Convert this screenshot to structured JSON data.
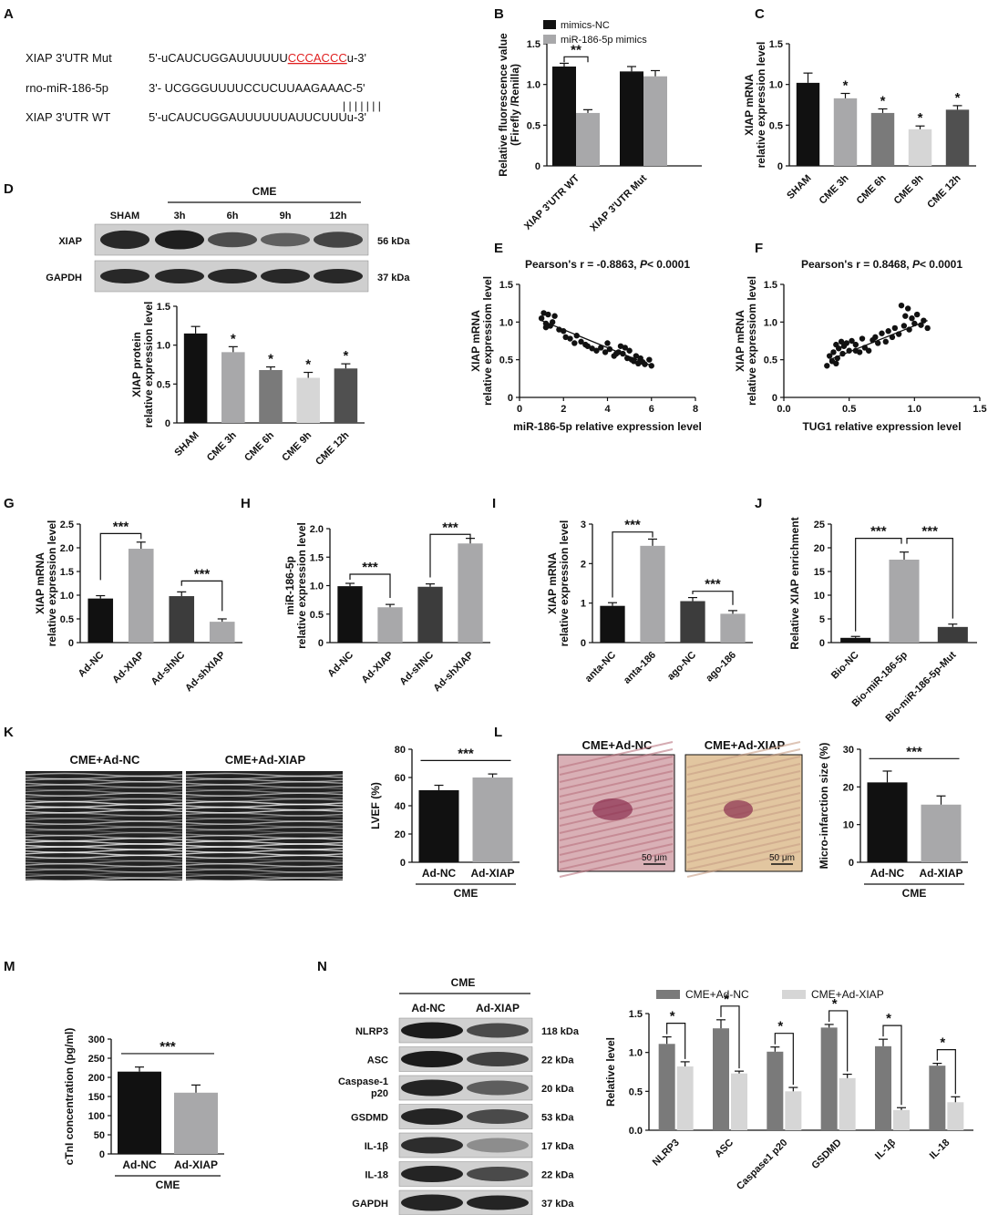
{
  "colors": {
    "black": "#111111",
    "lgray": "#a8a8aa",
    "vlgray": "#d6d6d6",
    "mgray": "#7a7a7a",
    "dgray": "#505050",
    "dkgray": "#3c3c3c"
  },
  "panels": [
    "A",
    "B",
    "C",
    "D",
    "E",
    "F",
    "G",
    "H",
    "I",
    "J",
    "K",
    "L",
    "M",
    "N"
  ],
  "panel_a": {
    "rows": [
      {
        "label": "XIAP 3'UTR Mut",
        "prefix": "5'-uCAUCUGGAUUUUUU",
        "highlight": "CCCACCC",
        "suffix": "u-3'"
      },
      {
        "label": "rno-miR-186-5p",
        "prefix": "3'- UCGGGUUUUCCUCUUAAGAAAC-5'",
        "highlight": "",
        "suffix": ""
      },
      {
        "label": "",
        "prefix": "| | | | | | |",
        "highlight": "",
        "suffix": ""
      },
      {
        "label": "XIAP 3'UTR WT",
        "prefix": "5'-uCAUCUGGAUUUUUUAUUCUUUu-3'",
        "highlight": "",
        "suffix": ""
      }
    ]
  },
  "wb_d": {
    "group": "CME",
    "lanes": [
      "SHAM",
      "3h",
      "6h",
      "9h",
      "12h"
    ],
    "rows": [
      {
        "name": "XIAP",
        "kda": "56 kDa"
      },
      {
        "name": "GAPDH",
        "kda": "37 kDa"
      }
    ]
  },
  "wb_n": {
    "group": "CME",
    "lanes": [
      "Ad-NC",
      "Ad-XIAP"
    ],
    "rows": [
      {
        "name": "NLRP3",
        "kda": "118 kDa"
      },
      {
        "name": "ASC",
        "kda": "22 kDa"
      },
      {
        "name": "Caspase-1 p20",
        "kda": "20 kDa"
      },
      {
        "name": "GSDMD",
        "kda": "53 kDa"
      },
      {
        "name": "IL-1β",
        "kda": "17 kDa"
      },
      {
        "name": "IL-18",
        "kda": "22 kDa"
      },
      {
        "name": "GAPDH",
        "kda": "37 kDa"
      }
    ]
  },
  "k_images": [
    "CME+Ad-NC",
    "CME+Ad-XIAP"
  ],
  "l_images": {
    "titles": [
      "CME+Ad-NC",
      "CME+Ad-XIAP"
    ],
    "scale": "50 μm"
  },
  "chart_data": [
    {
      "id": "B",
      "type": "bar",
      "ylabel": "Relative fluorescence value (Firefly /Renilla)",
      "ylim": [
        0,
        1.5
      ],
      "yticks": [
        0,
        0.5,
        1.0,
        1.5
      ],
      "categories": [
        "XIAP 3'UTR WT",
        "XIAP 3'UTR Mut"
      ],
      "series": [
        {
          "name": "mimics-NC",
          "color": "#111111",
          "values": [
            1.22,
            1.16
          ],
          "err": [
            0.04,
            0.06
          ]
        },
        {
          "name": "miR-186-5p mimics",
          "color": "#a8a8aa",
          "values": [
            0.65,
            1.1
          ],
          "err": [
            0.04,
            0.07
          ]
        }
      ],
      "legend": "top",
      "annotations": [
        {
          "text": "**",
          "between": [
            0,
            0,
            0,
            1
          ]
        }
      ]
    },
    {
      "id": "C",
      "type": "bar",
      "ylabel": "XIAP mRNA relative expression level",
      "ylim": [
        0,
        1.5
      ],
      "yticks": [
        0,
        0.5,
        1.0,
        1.5
      ],
      "categories": [
        "SHAM",
        "CME 3h",
        "CME 6h",
        "CME 9h",
        "CME 12h"
      ],
      "values": [
        1.02,
        0.83,
        0.65,
        0.45,
        0.69
      ],
      "err": [
        0.12,
        0.06,
        0.05,
        0.04,
        0.05
      ],
      "colors": [
        "#111111",
        "#a8a8aa",
        "#7a7a7a",
        "#d6d6d6",
        "#505050"
      ],
      "stars": [
        "",
        "*",
        "*",
        "*",
        "*"
      ]
    },
    {
      "id": "D",
      "type": "bar",
      "ylabel": "XIAP protein relative expression level",
      "ylim": [
        0,
        1.5
      ],
      "yticks": [
        0,
        0.5,
        1.0,
        1.5
      ],
      "categories": [
        "SHAM",
        "CME 3h",
        "CME 6h",
        "CME 9h",
        "CME 12h"
      ],
      "values": [
        1.15,
        0.91,
        0.68,
        0.58,
        0.7
      ],
      "err": [
        0.09,
        0.07,
        0.04,
        0.07,
        0.06
      ],
      "colors": [
        "#111111",
        "#a8a8aa",
        "#7a7a7a",
        "#d6d6d6",
        "#505050"
      ],
      "stars": [
        "",
        "*",
        "*",
        "*",
        "*"
      ]
    },
    {
      "id": "E",
      "type": "scatter",
      "title": "Pearson's r = -0.8863, P< 0.0001",
      "ylabel": "XIAP mRNA relative expressiom level",
      "xlabel": "miR-186-5p relative expression level",
      "xlim": [
        0,
        8
      ],
      "xticks": [
        0,
        2,
        4,
        6,
        8
      ],
      "ylim": [
        0,
        1.5
      ],
      "yticks": [
        0,
        0.5,
        1.0,
        1.5
      ],
      "fit": [
        [
          1.0,
          1.02
        ],
        [
          6.0,
          0.42
        ]
      ],
      "x": [
        1.0,
        1.1,
        1.2,
        1.3,
        1.4,
        1.5,
        1.6,
        1.2,
        1.8,
        2.0,
        2.1,
        2.3,
        2.5,
        2.6,
        2.8,
        3.0,
        3.1,
        3.3,
        3.5,
        3.7,
        3.9,
        4.0,
        4.1,
        4.3,
        4.5,
        4.6,
        4.7,
        4.9,
        5.0,
        5.1,
        5.2,
        5.3,
        5.4,
        5.5,
        5.6,
        5.7,
        5.9,
        6.0,
        4.4,
        4.8
      ],
      "y": [
        1.05,
        1.12,
        0.98,
        1.1,
        0.95,
        1.0,
        1.08,
        0.93,
        0.9,
        0.88,
        0.8,
        0.78,
        0.72,
        0.82,
        0.74,
        0.7,
        0.68,
        0.65,
        0.62,
        0.66,
        0.6,
        0.72,
        0.64,
        0.55,
        0.6,
        0.68,
        0.58,
        0.52,
        0.62,
        0.5,
        0.48,
        0.55,
        0.45,
        0.52,
        0.47,
        0.44,
        0.5,
        0.42,
        0.58,
        0.66
      ]
    },
    {
      "id": "F",
      "type": "scatter",
      "title": "Pearson's r = 0.8468, P< 0.0001",
      "ylabel": "XIAP mRNA relative expressiom level",
      "xlabel": "TUG1 relative expression level",
      "xlim": [
        0,
        1.5
      ],
      "xticks": [
        0,
        0.5,
        1.0,
        1.5
      ],
      "ylim": [
        0,
        1.5
      ],
      "yticks": [
        0,
        0.5,
        1.0,
        1.5
      ],
      "fit": [
        [
          0.35,
          0.5
        ],
        [
          1.1,
          1.02
        ]
      ],
      "x": [
        0.33,
        0.35,
        0.37,
        0.38,
        0.4,
        0.41,
        0.42,
        0.44,
        0.45,
        0.46,
        0.48,
        0.5,
        0.52,
        0.55,
        0.58,
        0.6,
        0.62,
        0.65,
        0.7,
        0.72,
        0.75,
        0.78,
        0.8,
        0.83,
        0.85,
        0.88,
        0.9,
        0.92,
        0.95,
        0.96,
        0.98,
        1.0,
        1.02,
        1.05,
        1.07,
        1.1,
        0.93,
        0.4,
        0.55,
        0.68
      ],
      "y": [
        0.42,
        0.55,
        0.48,
        0.6,
        0.7,
        0.52,
        0.65,
        0.74,
        0.58,
        0.68,
        0.72,
        0.62,
        0.75,
        0.7,
        0.6,
        0.78,
        0.66,
        0.62,
        0.8,
        0.72,
        0.85,
        0.74,
        0.88,
        0.8,
        0.92,
        0.84,
        1.22,
        0.95,
        1.18,
        0.9,
        1.05,
        0.98,
        1.1,
        0.96,
        1.02,
        0.92,
        1.08,
        0.45,
        0.62,
        0.76
      ]
    },
    {
      "id": "G",
      "type": "bar",
      "ylabel": "XIAP mRNA relative expression level",
      "ylim": [
        0,
        2.5
      ],
      "yticks": [
        0,
        0.5,
        1.0,
        1.5,
        2.0,
        2.5
      ],
      "categories": [
        "Ad-NC",
        "Ad-XIAP",
        "Ad-shNC",
        "Ad-shXIAP"
      ],
      "values": [
        0.93,
        1.98,
        0.98,
        0.44
      ],
      "err": [
        0.06,
        0.14,
        0.09,
        0.06
      ],
      "colors": [
        "#111111",
        "#a8a8aa",
        "#3c3c3c",
        "#a8a8aa"
      ],
      "annotations": [
        {
          "text": "***",
          "between": [
            0,
            1
          ]
        },
        {
          "text": "***",
          "between": [
            2,
            3
          ]
        }
      ]
    },
    {
      "id": "H",
      "type": "bar",
      "ylabel": "miR-186-5p relative expression level",
      "ylim": [
        0,
        2.0
      ],
      "yticks": [
        0,
        0.5,
        1.0,
        1.5,
        2.0
      ],
      "categories": [
        "Ad-NC",
        "Ad-XIAP",
        "Ad-shNC",
        "Ad-shXIAP"
      ],
      "values": [
        0.99,
        0.62,
        0.98,
        1.74
      ],
      "err": [
        0.05,
        0.05,
        0.05,
        0.09
      ],
      "colors": [
        "#111111",
        "#a8a8aa",
        "#3c3c3c",
        "#a8a8aa"
      ],
      "annotations": [
        {
          "text": "***",
          "between": [
            0,
            1
          ]
        },
        {
          "text": "***",
          "between": [
            2,
            3
          ]
        }
      ]
    },
    {
      "id": "I",
      "type": "bar",
      "ylabel": "XIAP mRNA relative expression level",
      "ylim": [
        0,
        3
      ],
      "yticks": [
        0,
        1,
        2,
        3
      ],
      "categories": [
        "anta-NC",
        "anta-186",
        "ago-NC",
        "ago-186"
      ],
      "values": [
        0.93,
        2.45,
        1.05,
        0.73
      ],
      "err": [
        0.08,
        0.17,
        0.09,
        0.08
      ],
      "colors": [
        "#111111",
        "#a8a8aa",
        "#3c3c3c",
        "#a8a8aa"
      ],
      "annotations": [
        {
          "text": "***",
          "between": [
            0,
            1
          ]
        },
        {
          "text": "***",
          "between": [
            2,
            3
          ]
        }
      ]
    },
    {
      "id": "J",
      "type": "bar",
      "ylabel": "Relative XIAP enrichment",
      "ylim": [
        0,
        25
      ],
      "yticks": [
        0,
        5,
        10,
        15,
        20,
        25
      ],
      "categories": [
        "Bio-NC",
        "Bio-miR-186-5p",
        "Bio-miR-186-5p-Mut"
      ],
      "values": [
        1.0,
        17.5,
        3.3
      ],
      "err": [
        0.3,
        1.6,
        0.6
      ],
      "colors": [
        "#111111",
        "#a8a8aa",
        "#3c3c3c"
      ],
      "annotations": [
        {
          "text": "***",
          "between": [
            0,
            1
          ]
        },
        {
          "text": "***",
          "between": [
            1,
            2
          ]
        }
      ]
    },
    {
      "id": "K",
      "type": "bar",
      "ylabel": "LVEF (%)",
      "ylim": [
        0,
        80
      ],
      "yticks": [
        0,
        20,
        40,
        60,
        80
      ],
      "categories": [
        "Ad-NC",
        "Ad-XIAP"
      ],
      "group": "CME",
      "values": [
        51,
        60
      ],
      "err": [
        3.5,
        2.5
      ],
      "colors": [
        "#111111",
        "#a8a8aa"
      ],
      "annotations": [
        {
          "text": "***",
          "between": [
            0,
            1
          ]
        }
      ]
    },
    {
      "id": "L",
      "type": "bar",
      "ylabel": "Micro-infarction size (%)",
      "ylim": [
        0,
        30
      ],
      "yticks": [
        0,
        10,
        20,
        30
      ],
      "categories": [
        "Ad-NC",
        "Ad-XIAP"
      ],
      "group": "CME",
      "values": [
        21.2,
        15.3
      ],
      "err": [
        3.0,
        2.3
      ],
      "colors": [
        "#111111",
        "#a8a8aa"
      ],
      "annotations": [
        {
          "text": "***",
          "between": [
            0,
            1
          ]
        }
      ]
    },
    {
      "id": "M",
      "type": "bar",
      "ylabel": "cTnI concentration (pg/ml)",
      "ylim": [
        0,
        300
      ],
      "yticks": [
        0,
        50,
        100,
        150,
        200,
        250,
        300
      ],
      "categories": [
        "Ad-NC",
        "Ad-XIAP"
      ],
      "group": "CME",
      "values": [
        215,
        160
      ],
      "err": [
        12,
        20
      ],
      "colors": [
        "#111111",
        "#a8a8aa"
      ],
      "annotations": [
        {
          "text": "***",
          "between": [
            0,
            1
          ]
        }
      ]
    },
    {
      "id": "N",
      "type": "bar",
      "ylabel": "Relative level",
      "ylim": [
        0,
        1.5
      ],
      "yticks": [
        0.0,
        0.5,
        1.0,
        1.5
      ],
      "categories": [
        "NLRP3",
        "ASC",
        "Caspase1 p20",
        "GSDMD",
        "IL-1β",
        "IL-18"
      ],
      "series": [
        {
          "name": "CME+Ad-NC",
          "color": "#7a7a7a",
          "values": [
            1.11,
            1.31,
            1.01,
            1.32,
            1.08,
            0.83
          ],
          "err": [
            0.09,
            0.11,
            0.06,
            0.04,
            0.09,
            0.03
          ]
        },
        {
          "name": "CME+Ad-XIAP",
          "color": "#d6d6d6",
          "values": [
            0.82,
            0.73,
            0.5,
            0.67,
            0.26,
            0.36
          ],
          "err": [
            0.06,
            0.03,
            0.05,
            0.05,
            0.03,
            0.07
          ]
        }
      ],
      "legend": "top",
      "stars": [
        "*",
        "*",
        "*",
        "*",
        "*",
        "*"
      ]
    }
  ]
}
